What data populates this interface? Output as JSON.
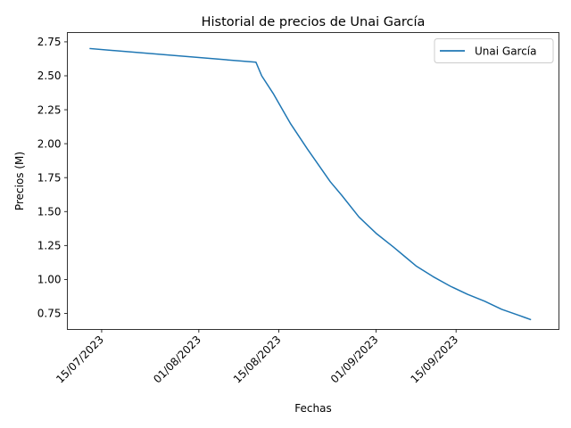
{
  "chart_data": {
    "type": "line",
    "title": "Historial de precios de Unai García",
    "xlabel": "Fechas",
    "ylabel": "Precios (M)",
    "x_ticks": [
      {
        "date": "2023-07-15",
        "label": "15/07/2023"
      },
      {
        "date": "2023-08-01",
        "label": "01/08/2023"
      },
      {
        "date": "2023-08-15",
        "label": "15/08/2023"
      },
      {
        "date": "2023-09-01",
        "label": "01/09/2023"
      },
      {
        "date": "2023-09-15",
        "label": "15/09/2023"
      }
    ],
    "y_ticks": [
      {
        "value": 0.75,
        "label": "0.75"
      },
      {
        "value": 1.0,
        "label": "1.00"
      },
      {
        "value": 1.25,
        "label": "1.25"
      },
      {
        "value": 1.5,
        "label": "1.50"
      },
      {
        "value": 1.75,
        "label": "1.75"
      },
      {
        "value": 2.0,
        "label": "2.00"
      },
      {
        "value": 2.25,
        "label": "2.25"
      },
      {
        "value": 2.5,
        "label": "2.50"
      },
      {
        "value": 2.75,
        "label": "2.75"
      }
    ],
    "xlim": [
      "2023-07-09",
      "2023-10-03"
    ],
    "ylim": [
      0.6315,
      2.8185
    ],
    "grid": false,
    "legend": "top-right",
    "series": [
      {
        "name": "Unai García",
        "color": "#1f77b4",
        "points": [
          {
            "x": "2023-07-13",
            "y": 2.7
          },
          {
            "x": "2023-08-11",
            "y": 2.6
          },
          {
            "x": "2023-08-12",
            "y": 2.5
          },
          {
            "x": "2023-08-14",
            "y": 2.37
          },
          {
            "x": "2023-08-17",
            "y": 2.15
          },
          {
            "x": "2023-08-20",
            "y": 1.96
          },
          {
            "x": "2023-08-24",
            "y": 1.72
          },
          {
            "x": "2023-08-26",
            "y": 1.62
          },
          {
            "x": "2023-08-29",
            "y": 1.46
          },
          {
            "x": "2023-09-01",
            "y": 1.34
          },
          {
            "x": "2023-09-04",
            "y": 1.24
          },
          {
            "x": "2023-09-06",
            "y": 1.17
          },
          {
            "x": "2023-09-08",
            "y": 1.1
          },
          {
            "x": "2023-09-11",
            "y": 1.02
          },
          {
            "x": "2023-09-14",
            "y": 0.95
          },
          {
            "x": "2023-09-17",
            "y": 0.89
          },
          {
            "x": "2023-09-20",
            "y": 0.84
          },
          {
            "x": "2023-09-23",
            "y": 0.78
          },
          {
            "x": "2023-09-26",
            "y": 0.735
          },
          {
            "x": "2023-09-27",
            "y": 0.72
          },
          {
            "x": "2023-09-28",
            "y": 0.705
          }
        ]
      }
    ]
  }
}
